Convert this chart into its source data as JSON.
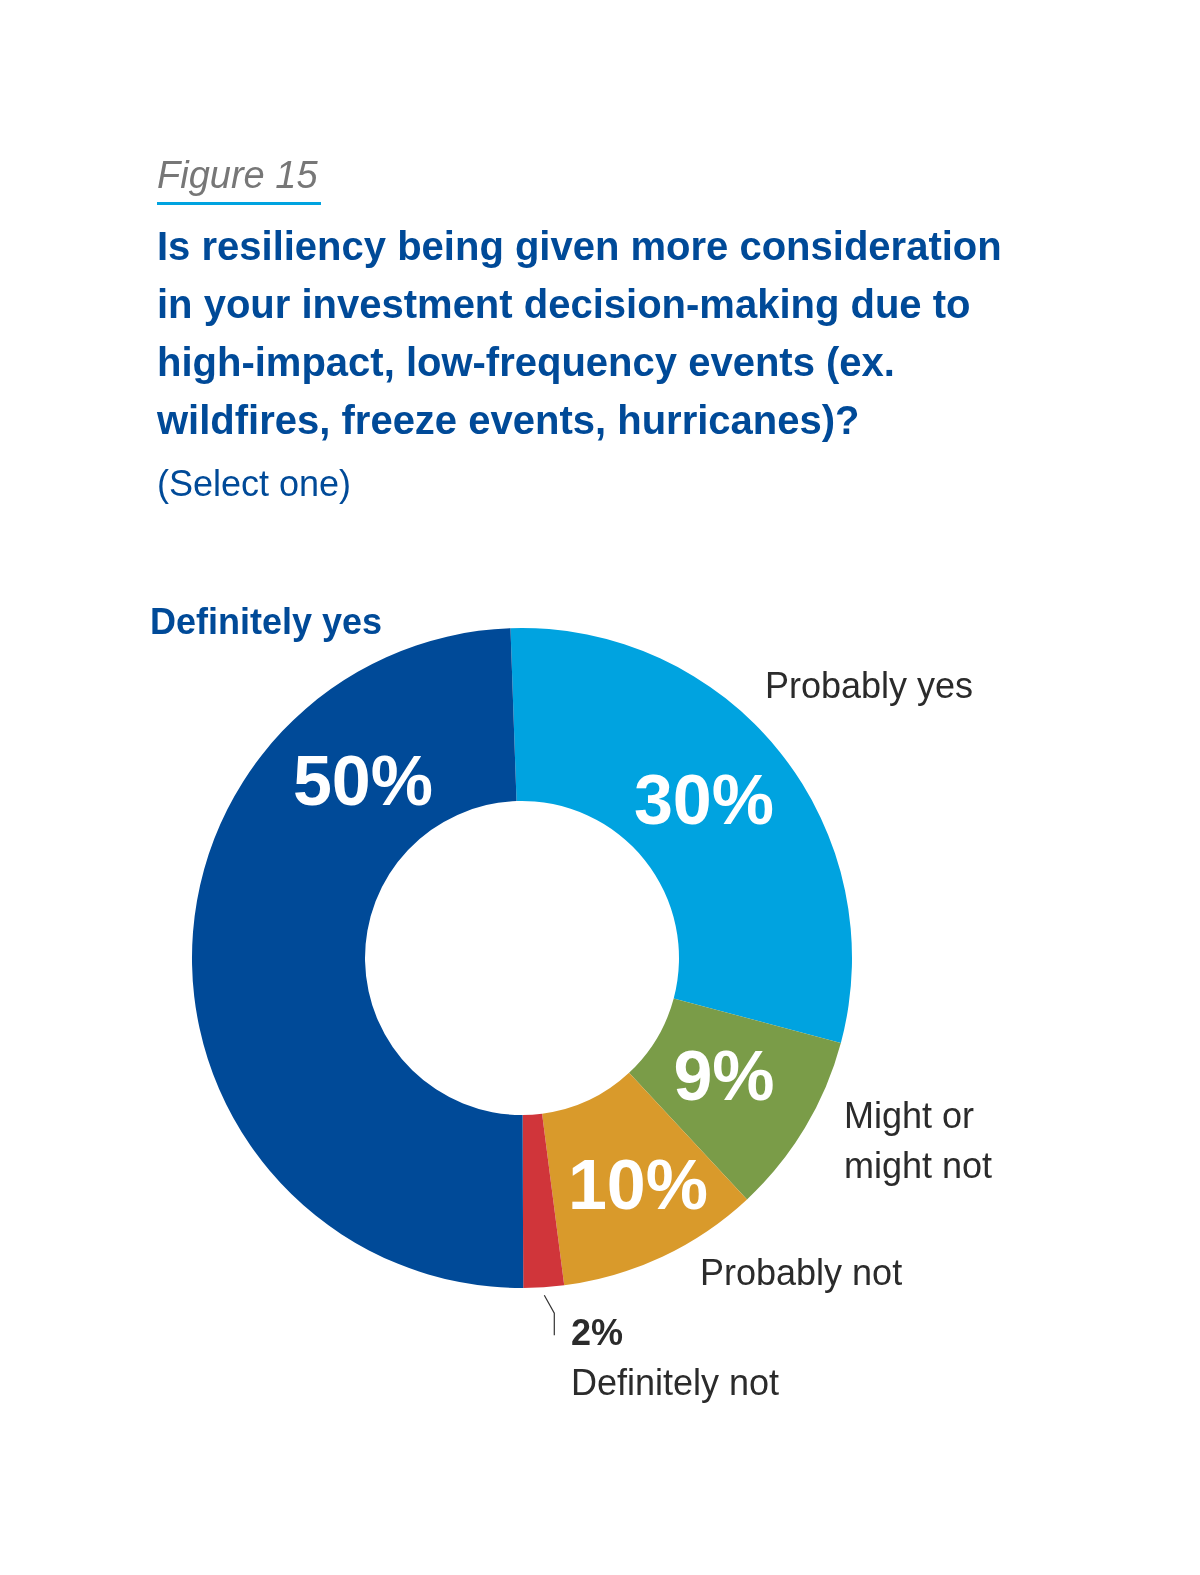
{
  "chart_data": {
    "type": "donut",
    "title": "Is resiliency being given more consideration in your investment decision-making due to high-impact, low-frequency events (ex. wildfires, freeze events, hurricanes)?",
    "subtitle": "(Select one)",
    "annotations": [
      "Figure 15"
    ],
    "categories": [
      "Probably yes",
      "Might or might not",
      "Probably not",
      "Definitely not",
      "Definitely yes"
    ],
    "values": [
      30,
      9,
      10,
      2,
      50
    ],
    "colors": [
      "#00a3e0",
      "#7a9c48",
      "#d99a2b",
      "#d0353a",
      "#004a98"
    ],
    "value_labels": [
      "30%",
      "9%",
      "10%",
      "2%",
      "50%"
    ]
  }
}
